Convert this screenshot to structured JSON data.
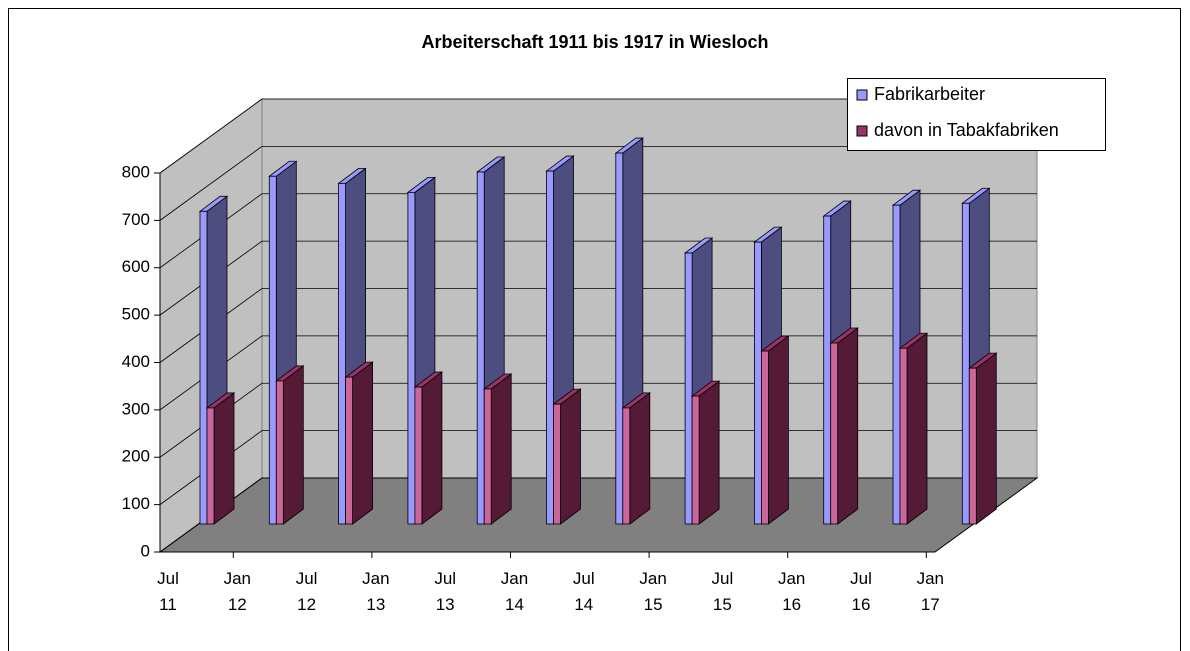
{
  "chart_data": {
    "type": "bar3d",
    "title": "Arbeiterschaft 1911 bis 1917 in Wiesloch",
    "categories": [
      "Jul 11",
      "Jan 12",
      "Jul 12",
      "Jan 13",
      "Jul 13",
      "Jan 14",
      "Jul 14",
      "Jan 15",
      "Jul 15",
      "Jan 16",
      "Jul 16",
      "Jan 17"
    ],
    "series": [
      {
        "name": "Fabrikarbeiter",
        "color": "#9999ff",
        "values": [
          660,
          734,
          719,
          700,
          743,
          745,
          783,
          572,
          595,
          650,
          673,
          677
        ]
      },
      {
        "name": "davon in Tabakfabriken",
        "color": "#993366",
        "values": [
          245,
          302,
          310,
          289,
          285,
          253,
          245,
          270,
          365,
          382,
          371,
          329
        ]
      }
    ],
    "ylim": [
      0,
      800
    ],
    "yticks": [
      0,
      100,
      200,
      300,
      400,
      500,
      600,
      700,
      800
    ],
    "grid": true,
    "legend": "top-right"
  }
}
